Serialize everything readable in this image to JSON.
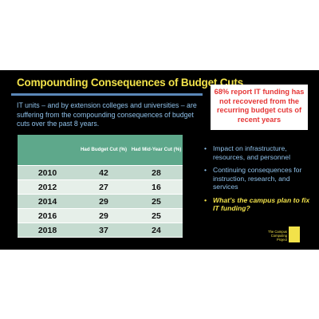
{
  "slide": {
    "title": "Compounding Consequences of Budget Cuts",
    "intro": "IT units – and by extension colleges and universities – are suffering from the compounding consequences of budget cuts over the past  8 years.",
    "callout": "68% report IT funding has not recovered from the recurring budget cuts of recent years",
    "table": {
      "headers": [
        "",
        "Had Budget Cut (%)",
        "Had Mid-Year Cut (%)"
      ],
      "rows": [
        [
          "2010",
          "42",
          "28"
        ],
        [
          "2012",
          "27",
          "16"
        ],
        [
          "2014",
          "29",
          "25"
        ],
        [
          "2016",
          "29",
          "25"
        ],
        [
          "2018",
          "37",
          "24"
        ]
      ]
    },
    "bullets": [
      "Impact on infrastructure, resources, and personnel",
      "Continuing consequences for instruction, research, and services",
      "What’s the campus plan to fix IT funding?"
    ],
    "bullet_glyph": "•",
    "logo_text": "The Campus Computing Project",
    "colors": {
      "background": "#000000",
      "title": "#f2e24a",
      "body_text": "#8fc1ea",
      "callout_text": "#e53535",
      "table_header": "#5ea88b"
    }
  }
}
